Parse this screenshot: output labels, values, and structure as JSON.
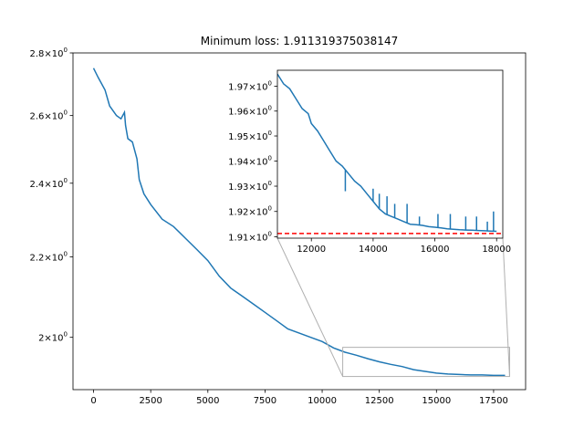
{
  "chart_data": {
    "type": "line",
    "title": "Minimum loss: 1.911319375038147",
    "xlabel": "",
    "ylabel": "",
    "y_scale": "log",
    "color": "#1f77b4",
    "main": {
      "xlim": [
        -900,
        18900
      ],
      "ylim": [
        1.88,
        2.8
      ],
      "xticks": [
        0,
        2500,
        5000,
        7500,
        10000,
        12500,
        15000,
        17500
      ],
      "xtick_labels": [
        "0",
        "2500",
        "5000",
        "7500",
        "10000",
        "12500",
        "15000",
        "17500"
      ],
      "yticks": [
        2.0,
        2.2,
        2.4,
        2.6,
        2.8
      ],
      "ytick_labels": [
        {
          "base": "2",
          "mult": "×10",
          "exp": "0"
        },
        {
          "base": "2.2",
          "mult": "×10",
          "exp": "0"
        },
        {
          "base": "2.4",
          "mult": "×10",
          "exp": "0"
        },
        {
          "base": "2.6",
          "mult": "×10",
          "exp": "0"
        },
        {
          "base": "2.8",
          "mult": "×10",
          "exp": "0"
        }
      ],
      "series": [
        {
          "x": [
            0,
            200,
            500,
            700,
            900,
            1000,
            1200,
            1350,
            1400,
            1500,
            1700,
            1900,
            2000,
            2200,
            2500,
            3000,
            3500,
            4000,
            4500,
            5000,
            5500,
            6000,
            6500,
            7000,
            7500,
            8000,
            8500,
            9000,
            9500,
            10000,
            10500,
            11000,
            11500,
            12000,
            12500,
            13000,
            13500,
            14000,
            14500,
            15000,
            15500,
            16000,
            16500,
            17000,
            17500,
            18000
          ],
          "y": [
            2.75,
            2.72,
            2.68,
            2.63,
            2.61,
            2.6,
            2.59,
            2.61,
            2.57,
            2.53,
            2.52,
            2.47,
            2.41,
            2.37,
            2.34,
            2.3,
            2.28,
            2.25,
            2.22,
            2.19,
            2.15,
            2.12,
            2.1,
            2.08,
            2.06,
            2.04,
            2.02,
            2.01,
            2.0,
            1.99,
            1.975,
            1.965,
            1.958,
            1.95,
            1.943,
            1.937,
            1.932,
            1.925,
            1.921,
            1.917,
            1.915,
            1.914,
            1.913,
            1.913,
            1.912,
            1.912
          ]
        }
      ]
    },
    "inset": {
      "xlim": [
        10900,
        18200
      ],
      "ylim": [
        1.9095,
        1.9765
      ],
      "xticks": [
        12000,
        14000,
        16000,
        18000
      ],
      "xtick_labels": [
        "12000",
        "14000",
        "16000",
        "18000"
      ],
      "yticks": [
        1.91,
        1.92,
        1.93,
        1.94,
        1.95,
        1.96,
        1.97
      ],
      "ytick_labels": [
        {
          "base": "1.91",
          "mult": "×10",
          "exp": "0"
        },
        {
          "base": "1.92",
          "mult": "×10",
          "exp": "0"
        },
        {
          "base": "1.93",
          "mult": "×10",
          "exp": "0"
        },
        {
          "base": "1.94",
          "mult": "×10",
          "exp": "0"
        },
        {
          "base": "1.95",
          "mult": "×10",
          "exp": "0"
        },
        {
          "base": "1.96",
          "mult": "×10",
          "exp": "0"
        },
        {
          "base": "1.97",
          "mult": "×10",
          "exp": "0"
        }
      ],
      "series": [
        {
          "x": [
            10900,
            11100,
            11300,
            11500,
            11700,
            11900,
            12000,
            12200,
            12400,
            12600,
            12800,
            13000,
            13200,
            13400,
            13600,
            13800,
            14000,
            14200,
            14400,
            14600,
            14800,
            15000,
            15200,
            15400,
            15600,
            15800,
            16000,
            16200,
            16400,
            16600,
            16800,
            17000,
            17200,
            17400,
            17600,
            17800,
            18000
          ],
          "y": [
            1.975,
            1.971,
            1.969,
            1.965,
            1.961,
            1.959,
            1.955,
            1.952,
            1.948,
            1.944,
            1.94,
            1.938,
            1.935,
            1.932,
            1.93,
            1.927,
            1.924,
            1.921,
            1.919,
            1.918,
            1.917,
            1.916,
            1.915,
            1.9148,
            1.9145,
            1.914,
            1.9138,
            1.9135,
            1.9132,
            1.913,
            1.9128,
            1.9127,
            1.9126,
            1.9125,
            1.9124,
            1.9123,
            1.9122
          ]
        }
      ],
      "spikes": [
        {
          "x": 13100,
          "y": 1.928
        },
        {
          "x": 14000,
          "y": 1.929
        },
        {
          "x": 14200,
          "y": 1.927
        },
        {
          "x": 14450,
          "y": 1.926
        },
        {
          "x": 14700,
          "y": 1.923
        },
        {
          "x": 15100,
          "y": 1.923
        },
        {
          "x": 15500,
          "y": 1.918
        },
        {
          "x": 16100,
          "y": 1.919
        },
        {
          "x": 16500,
          "y": 1.919
        },
        {
          "x": 17000,
          "y": 1.918
        },
        {
          "x": 17350,
          "y": 1.918
        },
        {
          "x": 17700,
          "y": 1.916
        },
        {
          "x": 17900,
          "y": 1.92
        }
      ],
      "min_line": {
        "y": 1.911319375038147,
        "color": "#ff0000",
        "style": "dashed"
      }
    }
  }
}
